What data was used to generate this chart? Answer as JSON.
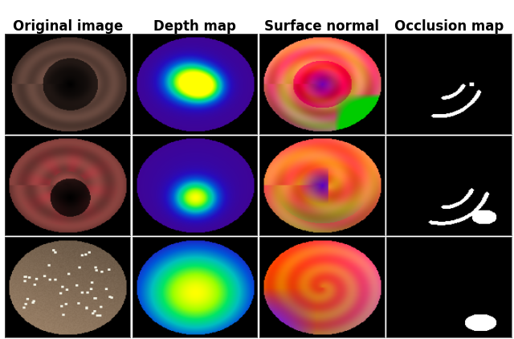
{
  "col_titles": [
    "Original image",
    "Depth map",
    "Surface normal",
    "Occlusion map"
  ],
  "figsize": [
    6.4,
    4.22
  ],
  "dpi": 100,
  "bg_color": "#ffffff",
  "title_fontsize": 12,
  "title_color": "#000000",
  "title_fontweight": "bold"
}
